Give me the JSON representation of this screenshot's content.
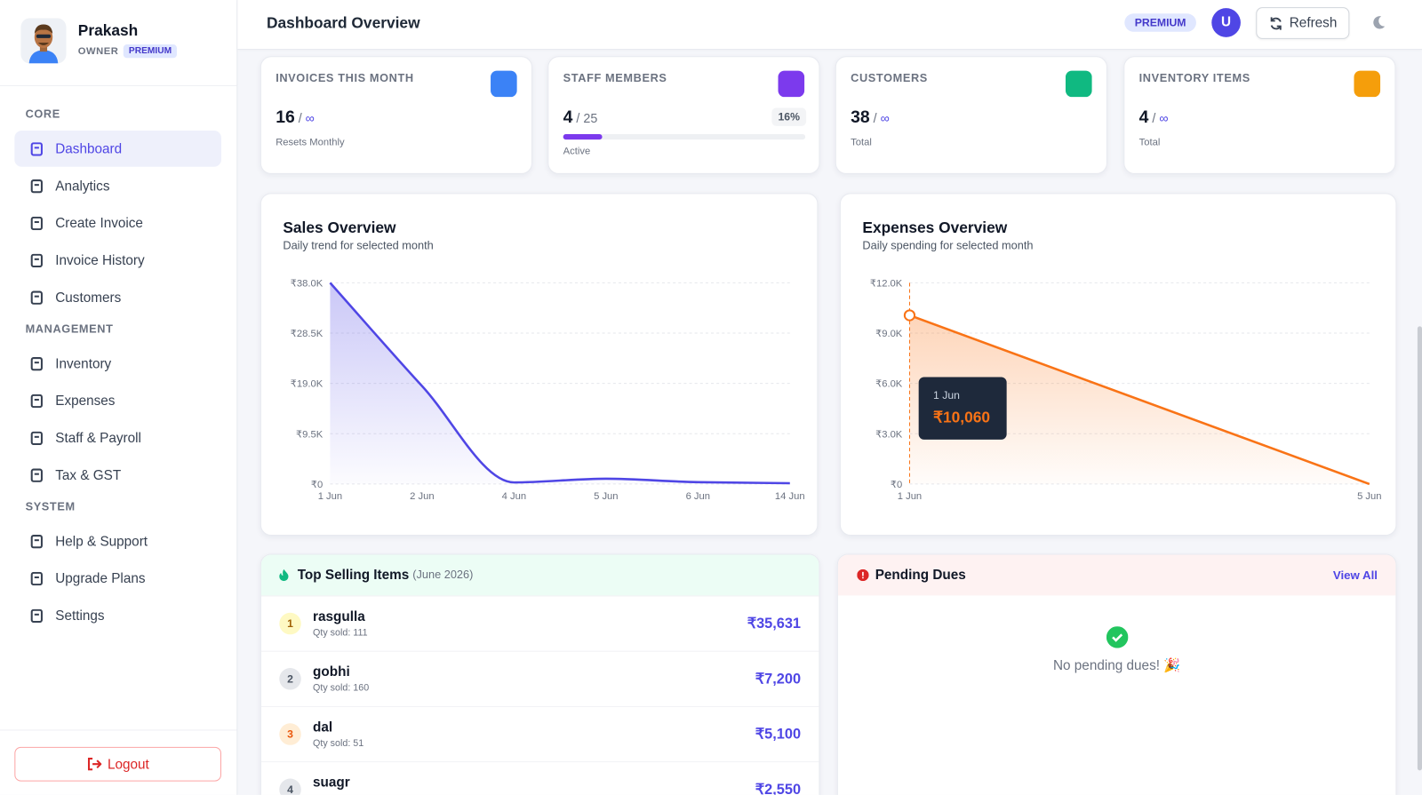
{
  "sidebar": {
    "user": {
      "name": "Prakash",
      "role": "OWNER",
      "plan": "PREMIUM"
    },
    "sections": [
      {
        "title": "CORE",
        "items": [
          "Dashboard",
          "Analytics",
          "Create Invoice",
          "Invoice History",
          "Customers"
        ]
      },
      {
        "title": "MANAGEMENT",
        "items": [
          "Inventory",
          "Expenses",
          "Staff & Payroll",
          "Tax & GST"
        ]
      },
      {
        "title": "SYSTEM",
        "items": [
          "Help & Support",
          "Upgrade Plans",
          "Settings"
        ]
      }
    ],
    "logout": "Logout"
  },
  "header": {
    "title": "Dashboard Overview",
    "badge": "PREMIUM",
    "avatar": "U",
    "refresh": "Refresh"
  },
  "stats": [
    {
      "label": "INVOICES THIS MONTH",
      "value": 16,
      "limit": "∞",
      "note": "Resets Monthly",
      "color": "#3b82f6"
    },
    {
      "label": "STAFF MEMBERS",
      "value": 4,
      "limit": 25,
      "percent": 16,
      "percent_label": "16%",
      "note": "Active",
      "color": "#7c3aed"
    },
    {
      "label": "CUSTOMERS",
      "value": 38,
      "limit": "∞",
      "note": "Total",
      "color": "#10b981"
    },
    {
      "label": "INVENTORY ITEMS",
      "value": 4,
      "limit": "∞",
      "note": "Total",
      "color": "#f59e0b"
    }
  ],
  "chart_data": [
    {
      "type": "line",
      "title": "Sales Overview",
      "subtitle": "Daily trend for selected month",
      "categories": [
        "1 Jun",
        "2 Jun",
        "4 Jun",
        "5 Jun",
        "6 Jun",
        "14 Jun"
      ],
      "values": [
        38000,
        18500,
        300,
        1000,
        350,
        150
      ],
      "color": "#4f46e5",
      "ylim": [
        0,
        38000
      ],
      "yticks": [
        {
          "value": 0,
          "label": "₹0"
        },
        {
          "value": 9500,
          "label": "₹9.5K"
        },
        {
          "value": 19000,
          "label": "₹19.0K"
        },
        {
          "value": 28500,
          "label": "₹28.5K"
        },
        {
          "value": 38000,
          "label": "₹38.0K"
        }
      ],
      "grid": true
    },
    {
      "type": "line",
      "title": "Expenses Overview",
      "subtitle": "Daily spending for selected month",
      "categories": [
        "1 Jun",
        "5 Jun"
      ],
      "values": [
        10060,
        0
      ],
      "value_labels": [
        "₹10,060",
        null
      ],
      "color": "#f97316",
      "ylim": [
        0,
        12000
      ],
      "yticks": [
        {
          "value": 0,
          "label": "₹0"
        },
        {
          "value": 3000,
          "label": "₹3.0K"
        },
        {
          "value": 6000,
          "label": "₹6.0K"
        },
        {
          "value": 9000,
          "label": "₹9.0K"
        },
        {
          "value": 12000,
          "label": "₹12.0K"
        }
      ],
      "grid": true
    }
  ],
  "top_selling": {
    "title": "Top Selling Items",
    "period": "(June 2026)",
    "qty_label": "Qty sold:",
    "items": [
      {
        "rank": 1,
        "name": "rasgulla",
        "qty": 111,
        "amount": "₹35,631"
      },
      {
        "rank": 2,
        "name": "gobhi",
        "qty": 160,
        "amount": "₹7,200"
      },
      {
        "rank": 3,
        "name": "dal",
        "qty": 51,
        "amount": "₹5,100"
      },
      {
        "rank": 4,
        "name": "suagr",
        "amount": "₹2,550"
      }
    ]
  },
  "pending_dues": {
    "title": "Pending Dues",
    "link": "View All",
    "empty": "No pending dues! 🎉"
  }
}
